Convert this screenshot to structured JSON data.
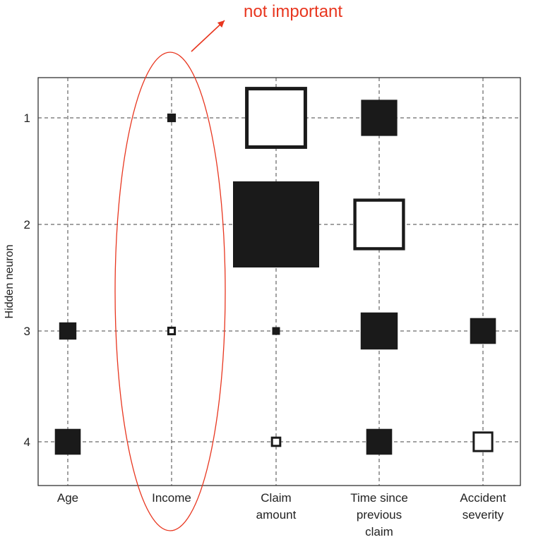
{
  "chart_data": {
    "type": "hinton",
    "ylabel": "Hidden neuron",
    "xlabel": "",
    "categories": [
      [
        "Age"
      ],
      [
        "Income"
      ],
      [
        "Claim",
        "amount"
      ],
      [
        "Time since",
        "previous",
        "claim"
      ],
      [
        "Accident",
        "severity"
      ]
    ],
    "rows": [
      1,
      2,
      3,
      4
    ],
    "cells": [
      {
        "row": 1,
        "col": "Income",
        "magnitude": 0.1,
        "sign": "positive"
      },
      {
        "row": 1,
        "col": "Claim amount",
        "magnitude": 0.72,
        "sign": "negative"
      },
      {
        "row": 1,
        "col": "Time since previous claim",
        "magnitude": 0.42,
        "sign": "positive"
      },
      {
        "row": 2,
        "col": "Claim amount",
        "magnitude": 1.0,
        "sign": "positive"
      },
      {
        "row": 2,
        "col": "Time since previous claim",
        "magnitude": 0.6,
        "sign": "negative"
      },
      {
        "row": 3,
        "col": "Age",
        "magnitude": 0.2,
        "sign": "positive"
      },
      {
        "row": 3,
        "col": "Income",
        "magnitude": 0.1,
        "sign": "negative"
      },
      {
        "row": 3,
        "col": "Claim amount",
        "magnitude": 0.09,
        "sign": "positive"
      },
      {
        "row": 3,
        "col": "Time since previous claim",
        "magnitude": 0.43,
        "sign": "positive"
      },
      {
        "row": 3,
        "col": "Accident severity",
        "magnitude": 0.3,
        "sign": "positive"
      },
      {
        "row": 4,
        "col": "Age",
        "magnitude": 0.3,
        "sign": "positive"
      },
      {
        "row": 4,
        "col": "Claim amount",
        "magnitude": 0.12,
        "sign": "negative"
      },
      {
        "row": 4,
        "col": "Time since previous claim",
        "magnitude": 0.3,
        "sign": "positive"
      },
      {
        "row": 4,
        "col": "Accident severity",
        "magnitude": 0.24,
        "sign": "negative"
      }
    ],
    "legend": {
      "positive": "filled square",
      "negative": "hollow square"
    },
    "grid": true,
    "annotation": {
      "text": "not important",
      "target": "Income",
      "color": "#e8361f"
    }
  }
}
